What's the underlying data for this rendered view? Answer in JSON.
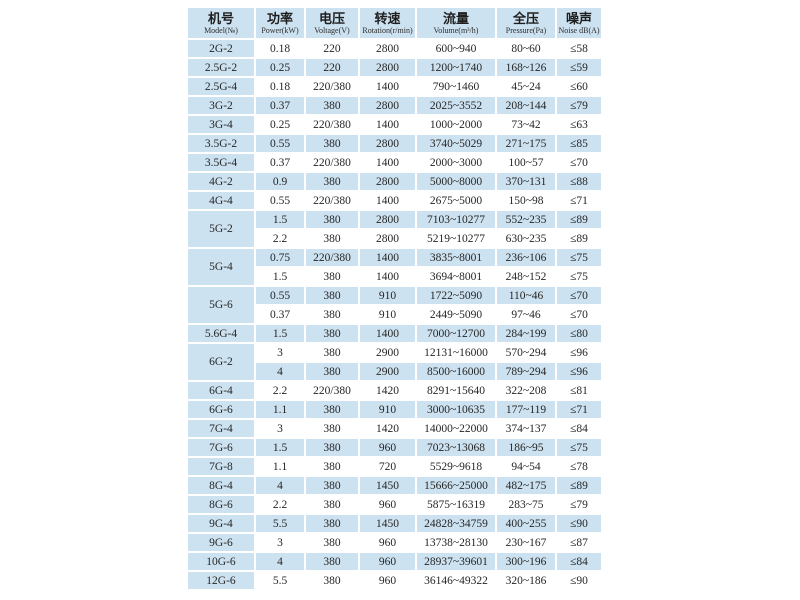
{
  "table": {
    "columns": [
      {
        "zh": "机号",
        "en": "Model(№)"
      },
      {
        "zh": "功率",
        "en": "Power(kW)"
      },
      {
        "zh": "电压",
        "en": "Voltage(V)"
      },
      {
        "zh": "转速",
        "en": "Rotation(r/min)"
      },
      {
        "zh": "流量",
        "en": "Volume(m³/h)"
      },
      {
        "zh": "全压",
        "en": "Pressure(Pa)"
      },
      {
        "zh": "噪声",
        "en": "Noise dB(A)"
      }
    ],
    "rows": [
      {
        "model": "2G-2",
        "span": 1,
        "power": "0.18",
        "voltage": "220",
        "rotation": "2800",
        "volume": "600~940",
        "pressure": "80~60",
        "noise": "≤58"
      },
      {
        "model": "2.5G-2",
        "span": 1,
        "power": "0.25",
        "voltage": "220",
        "rotation": "2800",
        "volume": "1200~1740",
        "pressure": "168~126",
        "noise": "≤59"
      },
      {
        "model": "2.5G-4",
        "span": 1,
        "power": "0.18",
        "voltage": "220/380",
        "rotation": "1400",
        "volume": "790~1460",
        "pressure": "45~24",
        "noise": "≤60"
      },
      {
        "model": "3G-2",
        "span": 1,
        "power": "0.37",
        "voltage": "380",
        "rotation": "2800",
        "volume": "2025~3552",
        "pressure": "208~144",
        "noise": "≤79"
      },
      {
        "model": "3G-4",
        "span": 1,
        "power": "0.25",
        "voltage": "220/380",
        "rotation": "1400",
        "volume": "1000~2000",
        "pressure": "73~42",
        "noise": "≤63"
      },
      {
        "model": "3.5G-2",
        "span": 1,
        "power": "0.55",
        "voltage": "380",
        "rotation": "2800",
        "volume": "3740~5029",
        "pressure": "271~175",
        "noise": "≤85"
      },
      {
        "model": "3.5G-4",
        "span": 1,
        "power": "0.37",
        "voltage": "220/380",
        "rotation": "1400",
        "volume": "2000~3000",
        "pressure": "100~57",
        "noise": "≤70"
      },
      {
        "model": "4G-2",
        "span": 1,
        "power": "0.9",
        "voltage": "380",
        "rotation": "2800",
        "volume": "5000~8000",
        "pressure": "370~131",
        "noise": "≤88"
      },
      {
        "model": "4G-4",
        "span": 1,
        "power": "0.55",
        "voltage": "220/380",
        "rotation": "1400",
        "volume": "2675~5000",
        "pressure": "150~98",
        "noise": "≤71"
      },
      {
        "model": "5G-2",
        "span": 2,
        "power": "1.5",
        "voltage": "380",
        "rotation": "2800",
        "volume": "7103~10277",
        "pressure": "552~235",
        "noise": "≤89"
      },
      {
        "model": null,
        "power": "2.2",
        "voltage": "380",
        "rotation": "2800",
        "volume": "5219~10277",
        "pressure": "630~235",
        "noise": "≤89"
      },
      {
        "model": "5G-4",
        "span": 2,
        "power": "0.75",
        "voltage": "220/380",
        "rotation": "1400",
        "volume": "3835~8001",
        "pressure": "236~106",
        "noise": "≤75"
      },
      {
        "model": null,
        "power": "1.5",
        "voltage": "380",
        "rotation": "1400",
        "volume": "3694~8001",
        "pressure": "248~152",
        "noise": "≤75"
      },
      {
        "model": "5G-6",
        "span": 2,
        "power": "0.55",
        "voltage": "380",
        "rotation": "910",
        "volume": "1722~5090",
        "pressure": "110~46",
        "noise": "≤70"
      },
      {
        "model": null,
        "power": "0.37",
        "voltage": "380",
        "rotation": "910",
        "volume": "2449~5090",
        "pressure": "97~46",
        "noise": "≤70"
      },
      {
        "model": "5.6G-4",
        "span": 1,
        "power": "1.5",
        "voltage": "380",
        "rotation": "1400",
        "volume": "7000~12700",
        "pressure": "284~199",
        "noise": "≤80"
      },
      {
        "model": "6G-2",
        "span": 2,
        "power": "3",
        "voltage": "380",
        "rotation": "2900",
        "volume": "12131~16000",
        "pressure": "570~294",
        "noise": "≤96"
      },
      {
        "model": null,
        "power": "4",
        "voltage": "380",
        "rotation": "2900",
        "volume": "8500~16000",
        "pressure": "789~294",
        "noise": "≤96"
      },
      {
        "model": "6G-4",
        "span": 1,
        "power": "2.2",
        "voltage": "220/380",
        "rotation": "1420",
        "volume": "8291~15640",
        "pressure": "322~208",
        "noise": "≤81"
      },
      {
        "model": "6G-6",
        "span": 1,
        "power": "1.1",
        "voltage": "380",
        "rotation": "910",
        "volume": "3000~10635",
        "pressure": "177~119",
        "noise": "≤71"
      },
      {
        "model": "7G-4",
        "span": 1,
        "power": "3",
        "voltage": "380",
        "rotation": "1420",
        "volume": "14000~22000",
        "pressure": "374~137",
        "noise": "≤84"
      },
      {
        "model": "7G-6",
        "span": 1,
        "power": "1.5",
        "voltage": "380",
        "rotation": "960",
        "volume": "7023~13068",
        "pressure": "186~95",
        "noise": "≤75"
      },
      {
        "model": "7G-8",
        "span": 1,
        "power": "1.1",
        "voltage": "380",
        "rotation": "720",
        "volume": "5529~9618",
        "pressure": "94~54",
        "noise": "≤78"
      },
      {
        "model": "8G-4",
        "span": 1,
        "power": "4",
        "voltage": "380",
        "rotation": "1450",
        "volume": "15666~25000",
        "pressure": "482~175",
        "noise": "≤89"
      },
      {
        "model": "8G-6",
        "span": 1,
        "power": "2.2",
        "voltage": "380",
        "rotation": "960",
        "volume": "5875~16319",
        "pressure": "283~75",
        "noise": "≤79"
      },
      {
        "model": "9G-4",
        "span": 1,
        "power": "5.5",
        "voltage": "380",
        "rotation": "1450",
        "volume": "24828~34759",
        "pressure": "400~255",
        "noise": "≤90"
      },
      {
        "model": "9G-6",
        "span": 1,
        "power": "3",
        "voltage": "380",
        "rotation": "960",
        "volume": "13738~28130",
        "pressure": "230~167",
        "noise": "≤87"
      },
      {
        "model": "10G-6",
        "span": 1,
        "power": "4",
        "voltage": "380",
        "rotation": "960",
        "volume": "28937~39601",
        "pressure": "300~196",
        "noise": "≤84"
      },
      {
        "model": "12G-6",
        "span": 1,
        "power": "5.5",
        "voltage": "380",
        "rotation": "960",
        "volume": "36146~49322",
        "pressure": "320~186",
        "noise": "≤90"
      }
    ]
  },
  "colors": {
    "row_blue": "#cde2f0",
    "row_white": "#ffffff",
    "text": "#262626"
  }
}
